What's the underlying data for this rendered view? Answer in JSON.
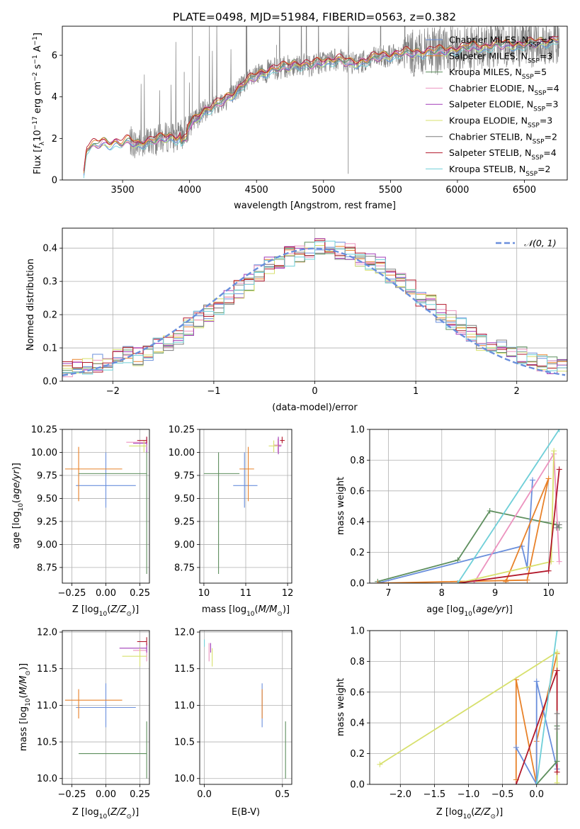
{
  "figure_title": "PLATE=0498, MJD=51984, FIBERID=0563, z=0.382",
  "colors": {
    "chab_miles": "#6a8fdc",
    "salp_miles": "#e8822a",
    "krou_miles": "#5e8f5e",
    "chab_elodie": "#ec93bf",
    "salp_elodie": "#a23bb8",
    "krou_elodie": "#d7e06d",
    "chab_stelib": "#7f7f7f",
    "salp_stelib": "#b2182b",
    "krou_stelib": "#6fcfd8",
    "data": "#808080",
    "normal": "#6a8fdc"
  },
  "chart_data": [
    {
      "id": "spectrum",
      "type": "line",
      "xlabel": "wavelength [Angstrom, rest frame]",
      "ylabel": "Flux [f_λ 10^-17 erg cm^-2 s^-1 A^-1]",
      "xlim": [
        3050,
        6820
      ],
      "ylim": [
        0,
        7.4
      ],
      "xticks": [
        "3500",
        "4000",
        "4500",
        "5000",
        "5500",
        "6000",
        "6500"
      ],
      "yticks": [
        "0",
        "2",
        "4",
        "6"
      ],
      "grid": false,
      "legend": "top-right",
      "legend_entries": [
        {
          "text": "Chabrier MILES, N_SSP=5",
          "color": "chab_miles"
        },
        {
          "text": "Salpeter MILES, N_SSP=3",
          "color": "salp_miles"
        },
        {
          "text": "Kroupa MILES, N_SSP=5",
          "color": "krou_miles"
        },
        {
          "text": "Chabrier ELODIE, N_SSP=4",
          "color": "chab_elodie"
        },
        {
          "text": "Salpeter ELODIE, N_SSP=3",
          "color": "salp_elodie"
        },
        {
          "text": "Kroupa ELODIE, N_SSP=3",
          "color": "krou_elodie"
        },
        {
          "text": "Chabrier STELIB, N_SSP=2",
          "color": "chab_stelib"
        },
        {
          "text": "Salpeter STELIB, N_SSP=4",
          "color": "salp_stelib"
        },
        {
          "text": "Kroupa STELIB, N_SSP=2",
          "color": "krou_stelib"
        }
      ],
      "data_envelope": {
        "x": [
          3210,
          3230,
          3260,
          3300,
          3350,
          3400,
          3450,
          3500,
          3550,
          3600,
          3650,
          3700,
          3750,
          3800,
          3850,
          3900,
          3950,
          4000,
          4100,
          4200,
          4300,
          4400,
          4500,
          4600,
          4700,
          4800,
          4900,
          5000,
          5100,
          5200,
          5300,
          5400,
          5500,
          5600,
          5700,
          5800,
          5900,
          6000,
          6100,
          6200,
          6300,
          6400,
          6500,
          6600,
          6700,
          6800
        ],
        "y": [
          0.3,
          1.5,
          1.6,
          1.7,
          1.8,
          1.75,
          1.8,
          1.75,
          1.9,
          1.7,
          1.8,
          1.85,
          1.9,
          2.0,
          2.1,
          2.0,
          2.2,
          2.6,
          3.3,
          3.6,
          4.0,
          4.6,
          5.0,
          5.3,
          5.4,
          5.6,
          5.5,
          5.7,
          5.8,
          5.6,
          5.7,
          5.9,
          6.0,
          6.1,
          6.1,
          6.2,
          6.2,
          6.3,
          6.4,
          6.4,
          6.5,
          6.5,
          6.5,
          6.6,
          6.7,
          6.8
        ]
      },
      "data_start": 3550,
      "data_end": 6760
    },
    {
      "id": "residuals",
      "type": "step-histogram",
      "xlabel": "(data-model)/error",
      "ylabel": "Normed distribution",
      "xlim": [
        -2.5,
        2.5
      ],
      "ylim": [
        0,
        0.46
      ],
      "xticks": [
        "−2",
        "−1",
        "0",
        "1",
        "2"
      ],
      "yticks": [
        "0.0",
        "0.1",
        "0.2",
        "0.3",
        "0.4"
      ],
      "grid": true,
      "legend": "top-right",
      "legend_entries": [
        {
          "text": "𝒩(0, 1)",
          "color": "normal",
          "dashed": true
        }
      ],
      "bin_width": 0.1
    },
    {
      "id": "age_vs_Z",
      "type": "errorbar",
      "xlabel": "Z [log10(Z/Z⊙)]",
      "ylabel": "age [log10(age/yr)]",
      "xlim": [
        -0.32,
        0.32
      ],
      "ylim": [
        8.58,
        10.25
      ],
      "xticks": [
        "−0.25",
        "0.00",
        "0.25"
      ],
      "yticks": [
        "8.75",
        "9.00",
        "9.25",
        "9.50",
        "9.75",
        "10.00",
        "10.25"
      ],
      "grid": true,
      "points": [
        {
          "color": "chab_miles",
          "x": 0.0,
          "xlo": -0.22,
          "xhi": 0.22,
          "y": 9.64,
          "ylo": 9.4,
          "yhi": 10.0
        },
        {
          "color": "salp_miles",
          "x": -0.2,
          "xlo": -0.3,
          "xhi": 0.12,
          "y": 9.82,
          "ylo": 9.47,
          "yhi": 10.06
        },
        {
          "color": "krou_miles",
          "x": 0.3,
          "xlo": -0.2,
          "xhi": 0.3,
          "y": 9.77,
          "ylo": 8.68,
          "yhi": 10.02
        },
        {
          "color": "chab_elodie",
          "x": 0.3,
          "xlo": 0.15,
          "xhi": 0.3,
          "y": 10.11,
          "ylo": 10.08,
          "yhi": 10.13
        },
        {
          "color": "salp_elodie",
          "x": 0.3,
          "xlo": 0.2,
          "xhi": 0.3,
          "y": 10.1,
          "ylo": 10.0,
          "yhi": 10.17
        },
        {
          "color": "krou_elodie",
          "x": 0.28,
          "xlo": 0.17,
          "xhi": 0.3,
          "y": 10.07,
          "ylo": 10.0,
          "yhi": 10.13
        },
        {
          "color": "salp_stelib",
          "x": 0.3,
          "xlo": 0.23,
          "xhi": 0.3,
          "y": 10.13,
          "ylo": 10.1,
          "yhi": 10.17
        }
      ]
    },
    {
      "id": "age_vs_mass",
      "type": "errorbar",
      "xlabel": "mass [log10(M/M⊙)]",
      "ylabel": "",
      "xlim": [
        9.9,
        12.1
      ],
      "ylim": [
        8.58,
        10.25
      ],
      "xticks": [
        "10",
        "11",
        "12"
      ],
      "yticks": [
        "8.75",
        "9.00",
        "9.25",
        "9.50",
        "9.75",
        "10.00",
        "10.25"
      ],
      "grid": true,
      "points": [
        {
          "color": "chab_miles",
          "x": 10.97,
          "xlo": 10.7,
          "xhi": 11.28,
          "y": 9.64,
          "ylo": 9.4,
          "yhi": 10.0
        },
        {
          "color": "salp_miles",
          "x": 11.06,
          "xlo": 10.85,
          "xhi": 11.2,
          "y": 9.82,
          "ylo": 9.47,
          "yhi": 10.06
        },
        {
          "color": "krou_miles",
          "x": 10.35,
          "xlo": 10.0,
          "xhi": 10.85,
          "y": 9.77,
          "ylo": 8.68,
          "yhi": 10.0
        },
        {
          "color": "chab_elodie",
          "x": 11.77,
          "xlo": 11.67,
          "xhi": 11.86,
          "y": 10.08,
          "ylo": 10.0,
          "yhi": 10.15
        },
        {
          "color": "salp_elodie",
          "x": 11.78,
          "xlo": 11.7,
          "xhi": 11.85,
          "y": 10.07,
          "ylo": 9.98,
          "yhi": 10.17
        },
        {
          "color": "krou_elodie",
          "x": 11.67,
          "xlo": 11.55,
          "xhi": 11.78,
          "y": 10.07,
          "ylo": 10.0,
          "yhi": 10.13
        },
        {
          "color": "salp_stelib",
          "x": 11.87,
          "xlo": 11.82,
          "xhi": 11.93,
          "y": 10.13,
          "ylo": 10.1,
          "yhi": 10.17
        }
      ]
    },
    {
      "id": "weight_vs_age",
      "type": "line",
      "xlabel": "age [log10(age/yr)]",
      "ylabel": "mass weight",
      "xlim": [
        6.65,
        10.35
      ],
      "ylim": [
        0,
        1.0
      ],
      "xticks": [
        "7",
        "8",
        "9",
        "10"
      ],
      "yticks": [
        "0.0",
        "0.2",
        "0.4",
        "0.6",
        "0.8",
        "1.0"
      ],
      "grid": true,
      "series": [
        {
          "color": "krou_miles",
          "x": [
            6.8,
            8.3,
            8.9,
            10.15,
            10.2
          ],
          "y": [
            0.01,
            0.15,
            0.47,
            0.38,
            0.36
          ]
        },
        {
          "color": "chab_miles",
          "x": [
            6.8,
            9.5,
            9.6,
            9.7
          ],
          "y": [
            0.0,
            0.24,
            0.1,
            0.67
          ]
        },
        {
          "color": "salp_miles",
          "x": [
            6.8,
            9.6,
            10.0,
            9.2
          ],
          "y": [
            0.0,
            0.02,
            0.68,
            0.01
          ]
        },
        {
          "color": "chab_elodie",
          "x": [
            8.6,
            10.1,
            10.2
          ],
          "y": [
            0.0,
            0.84,
            0.14
          ]
        },
        {
          "color": "krou_elodie",
          "x": [
            8.3,
            10.05,
            10.1
          ],
          "y": [
            0.0,
            0.14,
            0.86
          ]
        },
        {
          "color": "salp_stelib",
          "x": [
            8.3,
            10.0,
            10.2
          ],
          "y": [
            0.0,
            0.08,
            0.74
          ]
        },
        {
          "color": "krou_stelib",
          "x": [
            8.3,
            10.2
          ],
          "y": [
            0.0,
            1.0
          ]
        },
        {
          "color": "chab_stelib",
          "x": [
            10.15,
            10.2
          ],
          "y": [
            0.36,
            0.38
          ]
        }
      ]
    },
    {
      "id": "mass_vs_Z",
      "type": "errorbar",
      "xlabel": "Z [log10(Z/Z⊙)]",
      "ylabel": "mass [log10(M/M⊙)]",
      "xlim": [
        -0.32,
        0.32
      ],
      "ylim": [
        9.92,
        12.02
      ],
      "xticks": [
        "−0.25",
        "0.00",
        "0.25"
      ],
      "yticks": [
        "10.0",
        "10.5",
        "11.0",
        "11.5",
        "12.0"
      ],
      "grid": true,
      "points": [
        {
          "color": "chab_miles",
          "x": 0.0,
          "xlo": -0.22,
          "xhi": 0.22,
          "y": 10.97,
          "ylo": 10.7,
          "yhi": 11.3
        },
        {
          "color": "salp_miles",
          "x": -0.2,
          "xlo": -0.3,
          "xhi": 0.12,
          "y": 11.07,
          "ylo": 10.82,
          "yhi": 11.22
        },
        {
          "color": "krou_miles",
          "x": 0.3,
          "xlo": -0.2,
          "xhi": 0.3,
          "y": 10.34,
          "ylo": 10.0,
          "yhi": 10.78
        },
        {
          "color": "chab_elodie",
          "x": 0.3,
          "xlo": 0.2,
          "xhi": 0.3,
          "y": 11.75,
          "ylo": 11.6,
          "yhi": 11.85
        },
        {
          "color": "salp_elodie",
          "x": 0.3,
          "xlo": 0.1,
          "xhi": 0.3,
          "y": 11.78,
          "ylo": 11.72,
          "yhi": 11.85
        },
        {
          "color": "krou_elodie",
          "x": 0.25,
          "xlo": 0.12,
          "xhi": 0.3,
          "y": 11.67,
          "ylo": 11.53,
          "yhi": 11.78
        },
        {
          "color": "salp_stelib",
          "x": 0.3,
          "xlo": 0.23,
          "xhi": 0.3,
          "y": 11.87,
          "ylo": 11.82,
          "yhi": 11.93
        }
      ]
    },
    {
      "id": "mass_vs_ebv",
      "type": "errorbar",
      "xlabel": "E(B-V)",
      "ylabel": "",
      "xlim": [
        -0.03,
        0.56
      ],
      "ylim": [
        9.92,
        12.02
      ],
      "xticks": [
        "0.0",
        "0.5"
      ],
      "yticks": [
        "10.0",
        "10.5",
        "11.0",
        "11.5",
        "12.0"
      ],
      "grid": true,
      "points": [
        {
          "color": "chab_miles",
          "x": 0.37,
          "xlo": 0.37,
          "xhi": 0.37,
          "y": 10.97,
          "ylo": 10.7,
          "yhi": 11.3
        },
        {
          "color": "salp_miles",
          "x": 0.37,
          "xlo": 0.37,
          "xhi": 0.37,
          "y": 11.07,
          "ylo": 10.82,
          "yhi": 11.22
        },
        {
          "color": "krou_miles",
          "x": 0.52,
          "xlo": 0.52,
          "xhi": 0.52,
          "y": 10.34,
          "ylo": 10.0,
          "yhi": 10.78
        },
        {
          "color": "chab_elodie",
          "x": 0.03,
          "xlo": 0.03,
          "xhi": 0.03,
          "y": 11.75,
          "ylo": 11.6,
          "yhi": 11.85
        },
        {
          "color": "salp_elodie",
          "x": 0.04,
          "xlo": 0.04,
          "xhi": 0.04,
          "y": 11.78,
          "ylo": 11.72,
          "yhi": 11.85
        },
        {
          "color": "krou_elodie",
          "x": 0.05,
          "xlo": 0.05,
          "xhi": 0.05,
          "y": 11.67,
          "ylo": 11.53,
          "yhi": 11.78
        },
        {
          "color": "krou_stelib",
          "x": 0.0,
          "xlo": 0.0,
          "xhi": 0.0,
          "y": 11.85,
          "ylo": 11.8,
          "yhi": 11.9
        }
      ]
    },
    {
      "id": "weight_vs_Z",
      "type": "line",
      "xlabel": "Z [log10(Z/Z⊙)]",
      "ylabel": "mass weight",
      "xlim": [
        -2.45,
        0.45
      ],
      "ylim": [
        0,
        1.0
      ],
      "xticks": [
        "−2.0",
        "−1.5",
        "−1.0",
        "−0.5",
        "0.0"
      ],
      "yticks": [
        "0.0",
        "0.2",
        "0.4",
        "0.6",
        "0.8",
        "1.0"
      ],
      "grid": true,
      "series": [
        {
          "color": "salp_miles",
          "x": [
            -0.3,
            -0.3,
            0.0,
            0.0,
            0.3
          ],
          "y": [
            0.03,
            0.68,
            0.0,
            0.28,
            0.85
          ]
        },
        {
          "color": "krou_elodie",
          "x": [
            -2.3,
            0.3,
            0.3
          ],
          "y": [
            0.13,
            0.86,
            0.01
          ]
        },
        {
          "color": "chab_miles",
          "x": [
            -0.3,
            0.0,
            0.0,
            0.3
          ],
          "y": [
            0.24,
            0.0,
            0.67,
            0.1
          ]
        },
        {
          "color": "salp_stelib",
          "x": [
            -0.3,
            0.3,
            0.3
          ],
          "y": [
            0.0,
            0.74,
            0.08
          ]
        },
        {
          "color": "krou_miles",
          "x": [
            0.0,
            0.3,
            0.3
          ],
          "y": [
            0.0,
            0.15,
            0.38
          ]
        },
        {
          "color": "krou_stelib",
          "x": [
            0.0,
            0.3
          ],
          "y": [
            0.0,
            1.0
          ]
        },
        {
          "color": "chab_stelib",
          "x": [
            0.3,
            0.3
          ],
          "y": [
            0.36,
            0.46
          ]
        }
      ]
    }
  ]
}
